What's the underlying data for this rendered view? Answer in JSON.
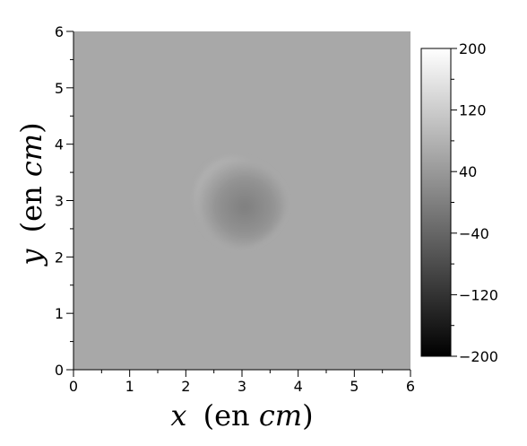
{
  "chart_data": {
    "type": "heatmap",
    "xlabel": {
      "var": "x",
      "text": "(en ",
      "unit": "cm",
      "close": ")"
    },
    "ylabel": {
      "var": "y",
      "text": "(en ",
      "unit": "cm",
      "close": ")"
    },
    "xlim": [
      0,
      6
    ],
    "ylim": [
      0,
      6
    ],
    "x_ticks": [
      "0",
      "1",
      "2",
      "3",
      "4",
      "5",
      "6"
    ],
    "y_ticks": [
      "0",
      "1",
      "2",
      "3",
      "4",
      "5",
      "6"
    ],
    "x_tick_values": [
      0,
      1,
      2,
      3,
      4,
      5,
      6
    ],
    "y_tick_values": [
      0,
      1,
      2,
      3,
      4,
      5,
      6
    ],
    "colorbar": {
      "range": [
        -200,
        200
      ],
      "tick_values": [
        200,
        120,
        40,
        -40,
        -120,
        -200
      ],
      "tick_labels": [
        "200",
        "120",
        "40",
        "−40",
        "−120",
        "−200"
      ],
      "colormap": "grayscale"
    },
    "field": {
      "background_value": 64,
      "features": [
        {
          "shape": "blob",
          "center": [
            2.95,
            2.95
          ],
          "radius_x": 0.9,
          "radius_y": 0.85,
          "value": 0
        }
      ]
    },
    "grid": false
  }
}
